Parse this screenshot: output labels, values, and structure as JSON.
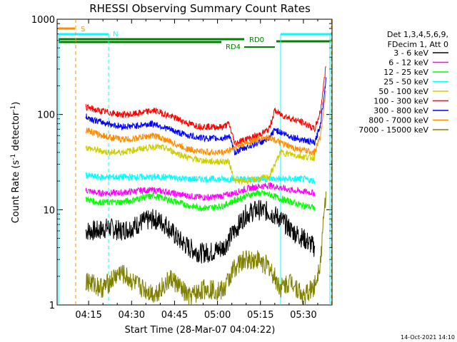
{
  "chart_data": {
    "type": "line",
    "title": "RHESSI Observing Summary Count Rates",
    "xlabel": "Start Time (28-Mar-07 04:04:22)",
    "ylabel_main": "Count Rate (s",
    "ylabel_sup1": "-1",
    "ylabel_mid": " detector",
    "ylabel_sup2": "-1",
    "ylabel_end": ")",
    "x_range_min": [
      4.0,
      40.0
    ],
    "y_scale": "log",
    "ylim": [
      1,
      1000
    ],
    "x_ticks": [
      {
        "value": 15,
        "label": "04:15"
      },
      {
        "value": 30,
        "label": "04:30"
      },
      {
        "value": 45,
        "label": "04:45"
      },
      {
        "value": 60,
        "label": "05:00"
      },
      {
        "value": 75,
        "label": "05:15"
      },
      {
        "value": 90,
        "label": "05:30"
      }
    ],
    "y_ticks": [
      {
        "value": 1,
        "label": "1"
      },
      {
        "value": 10,
        "label": "10"
      },
      {
        "value": 100,
        "label": "100"
      },
      {
        "value": 1000,
        "label": "1000"
      }
    ],
    "legend_header": [
      "Det 1,3,4,5,6,9,",
      "FDecim 1, Att 0"
    ],
    "series": [
      {
        "name": "3 - 6 keV",
        "color": "#000000",
        "points": [
          [
            14,
            6
          ],
          [
            18,
            6
          ],
          [
            22,
            6.5
          ],
          [
            26,
            6
          ],
          [
            30,
            6.5
          ],
          [
            34,
            7.5
          ],
          [
            38,
            8
          ],
          [
            42,
            7
          ],
          [
            46,
            5
          ],
          [
            50,
            4
          ],
          [
            54,
            3.5
          ],
          [
            58,
            3.6
          ],
          [
            62,
            4
          ],
          [
            66,
            6
          ],
          [
            70,
            9
          ],
          [
            74,
            10
          ],
          [
            78,
            9.5
          ],
          [
            82,
            8
          ],
          [
            86,
            6
          ],
          [
            90,
            5
          ],
          [
            94,
            4
          ]
        ]
      },
      {
        "name": "6 - 12 keV",
        "color": "#ff00ff",
        "points": [
          [
            14,
            16
          ],
          [
            18,
            15
          ],
          [
            22,
            15
          ],
          [
            26,
            15
          ],
          [
            30,
            15.5
          ],
          [
            34,
            16
          ],
          [
            38,
            16
          ],
          [
            42,
            15.5
          ],
          [
            46,
            14.5
          ],
          [
            50,
            14
          ],
          [
            54,
            13.5
          ],
          [
            58,
            13.5
          ],
          [
            62,
            14
          ],
          [
            66,
            15
          ],
          [
            70,
            16.5
          ],
          [
            74,
            17.5
          ],
          [
            78,
            18
          ],
          [
            82,
            17
          ],
          [
            86,
            16
          ],
          [
            90,
            15.5
          ],
          [
            94,
            15
          ]
        ]
      },
      {
        "name": "12 - 25 keV",
        "color": "#00ff00",
        "points": [
          [
            14,
            13
          ],
          [
            18,
            12
          ],
          [
            22,
            12
          ],
          [
            26,
            12
          ],
          [
            30,
            12.5
          ],
          [
            34,
            13.5
          ],
          [
            38,
            14
          ],
          [
            42,
            13
          ],
          [
            46,
            12
          ],
          [
            50,
            11
          ],
          [
            54,
            10.5
          ],
          [
            58,
            10.5
          ],
          [
            62,
            11
          ],
          [
            66,
            12.5
          ],
          [
            70,
            14
          ],
          [
            74,
            15
          ],
          [
            78,
            14.5
          ],
          [
            82,
            13
          ],
          [
            86,
            12
          ],
          [
            90,
            11
          ],
          [
            94,
            10.5
          ]
        ]
      },
      {
        "name": "25 - 50 keV",
        "color": "#00ffff",
        "points": [
          [
            14,
            23
          ],
          [
            18,
            22
          ],
          [
            22,
            22
          ],
          [
            26,
            22
          ],
          [
            30,
            22
          ],
          [
            34,
            22
          ],
          [
            38,
            22
          ],
          [
            42,
            22
          ],
          [
            46,
            21.5
          ],
          [
            50,
            21
          ],
          [
            54,
            21
          ],
          [
            58,
            21
          ],
          [
            62,
            21
          ],
          [
            66,
            21
          ],
          [
            70,
            21
          ],
          [
            74,
            21
          ],
          [
            78,
            21
          ],
          [
            82,
            21
          ],
          [
            86,
            21
          ],
          [
            90,
            21
          ],
          [
            94,
            20
          ]
        ]
      },
      {
        "name": "50 - 100 keV",
        "color": "#cccc00",
        "points": [
          [
            14,
            45
          ],
          [
            18,
            42
          ],
          [
            22,
            40
          ],
          [
            26,
            40
          ],
          [
            30,
            42
          ],
          [
            34,
            44
          ],
          [
            38,
            46
          ],
          [
            42,
            44
          ],
          [
            46,
            39
          ],
          [
            50,
            35
          ],
          [
            54,
            33
          ],
          [
            58,
            32
          ],
          [
            62,
            32
          ],
          [
            64,
            32
          ],
          [
            66,
            20
          ],
          [
            70,
            20
          ],
          [
            74,
            21
          ],
          [
            78,
            22
          ],
          [
            82,
            40
          ],
          [
            86,
            38
          ],
          [
            90,
            36
          ],
          [
            94,
            35
          ]
        ]
      },
      {
        "name": "100 - 300 keV",
        "color": "#ff0000",
        "points": [
          [
            14,
            120
          ],
          [
            18,
            110
          ],
          [
            22,
            105
          ],
          [
            26,
            100
          ],
          [
            30,
            100
          ],
          [
            34,
            105
          ],
          [
            38,
            110
          ],
          [
            42,
            100
          ],
          [
            46,
            90
          ],
          [
            50,
            80
          ],
          [
            54,
            75
          ],
          [
            58,
            74
          ],
          [
            62,
            74
          ],
          [
            64,
            80
          ],
          [
            66,
            50
          ],
          [
            70,
            55
          ],
          [
            74,
            60
          ],
          [
            78,
            70
          ],
          [
            80,
            110
          ],
          [
            82,
            100
          ],
          [
            86,
            90
          ],
          [
            90,
            82
          ],
          [
            94,
            70
          ],
          [
            96,
            110
          ],
          [
            98,
            350
          ]
        ]
      },
      {
        "name": "300 - 800 keV",
        "color": "#0000ff",
        "points": [
          [
            14,
            95
          ],
          [
            18,
            85
          ],
          [
            22,
            80
          ],
          [
            26,
            75
          ],
          [
            30,
            75
          ],
          [
            34,
            78
          ],
          [
            38,
            80
          ],
          [
            42,
            72
          ],
          [
            46,
            65
          ],
          [
            50,
            60
          ],
          [
            54,
            57
          ],
          [
            58,
            56
          ],
          [
            62,
            56
          ],
          [
            64,
            60
          ],
          [
            66,
            40
          ],
          [
            70,
            45
          ],
          [
            74,
            50
          ],
          [
            78,
            55
          ],
          [
            80,
            70
          ],
          [
            82,
            65
          ],
          [
            86,
            58
          ],
          [
            90,
            54
          ],
          [
            94,
            50
          ],
          [
            96,
            80
          ],
          [
            98,
            250
          ]
        ]
      },
      {
        "name": "800 - 7000 keV",
        "color": "#ff8c00",
        "points": [
          [
            14,
            70
          ],
          [
            18,
            62
          ],
          [
            22,
            58
          ],
          [
            26,
            55
          ],
          [
            30,
            55
          ],
          [
            34,
            58
          ],
          [
            38,
            60
          ],
          [
            42,
            54
          ],
          [
            46,
            48
          ],
          [
            50,
            43
          ],
          [
            54,
            41
          ],
          [
            58,
            40
          ],
          [
            62,
            40
          ],
          [
            64,
            42
          ],
          [
            66,
            45
          ],
          [
            70,
            50
          ],
          [
            74,
            55
          ],
          [
            78,
            58
          ],
          [
            82,
            50
          ],
          [
            86,
            45
          ],
          [
            90,
            42
          ],
          [
            94,
            40
          ],
          [
            96,
            60
          ],
          [
            98,
            200
          ]
        ]
      },
      {
        "name": "7000 - 15000 keV",
        "color": "#808000",
        "points": [
          [
            14,
            1.8
          ],
          [
            20,
            1.5
          ],
          [
            26,
            2.2
          ],
          [
            32,
            1.6
          ],
          [
            38,
            1.3
          ],
          [
            44,
            1.9
          ],
          [
            50,
            1.2
          ],
          [
            56,
            1.5
          ],
          [
            62,
            1.4
          ],
          [
            66,
            2.5
          ],
          [
            70,
            3
          ],
          [
            74,
            3
          ],
          [
            78,
            2.5
          ],
          [
            82,
            1.5
          ],
          [
            86,
            1.8
          ],
          [
            90,
            1.2
          ],
          [
            94,
            1.6
          ],
          [
            96,
            3
          ],
          [
            98,
            18
          ]
        ]
      }
    ],
    "annotations": {
      "s_label": "S",
      "n_label": "N",
      "rd0_label": "RD0",
      "rd4_label": "RD4"
    },
    "timestamp": "14-Oct-2021 14:10"
  }
}
